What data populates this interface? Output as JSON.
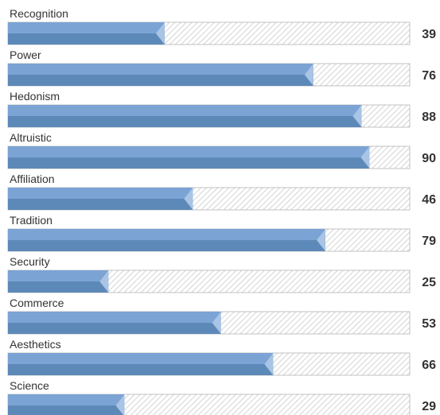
{
  "chart_data": {
    "type": "bar",
    "orientation": "horizontal",
    "categories": [
      "Recognition",
      "Power",
      "Hedonism",
      "Altruistic",
      "Affiliation",
      "Tradition",
      "Security",
      "Commerce",
      "Aesthetics",
      "Science"
    ],
    "values": [
      39,
      76,
      88,
      90,
      46,
      79,
      25,
      53,
      66,
      29
    ],
    "xlim": [
      0,
      100
    ],
    "title": "",
    "xlabel": "",
    "ylabel": "",
    "grid": false,
    "legend": "none",
    "colors": {
      "bar_light": "#7ba3d4",
      "bar_dark": "#5d89b8",
      "bar_tip": "#a9c4e4",
      "track_hatch": "#c9c9c9",
      "track_border": "#b5b5b5",
      "text": "#333333"
    }
  }
}
